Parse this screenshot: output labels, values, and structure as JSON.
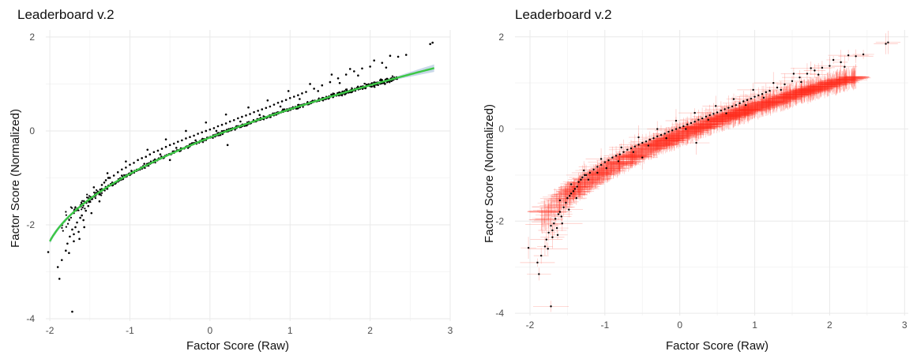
{
  "chart_data": [
    {
      "type": "scatter",
      "title": "Leaderboard v.2",
      "xlabel": "Factor Score (Raw)",
      "ylabel": "Factor Score (Normalized)",
      "xlim": [
        -2.05,
        3.0
      ],
      "ylim": [
        -4.05,
        2.15
      ],
      "xticks": [
        -2,
        -1,
        0,
        1,
        2,
        3
      ],
      "yticks": [
        -4,
        -2,
        0,
        2
      ],
      "grid": true,
      "colors": {
        "points": "#000000",
        "fit_line": "#3cc845",
        "fit_band": "#9ab8d6"
      },
      "series": [
        {
          "points": [
            [
              -2.02,
              -2.58
            ],
            [
              -1.88,
              -3.15
            ],
            [
              -1.72,
              -3.85
            ],
            [
              -1.85,
              -2.75
            ],
            [
              -1.8,
              -2.55
            ],
            [
              -1.78,
              -2.4
            ],
            [
              -1.75,
              -2.25
            ],
            [
              -1.72,
              -2.1
            ],
            [
              -1.7,
              -2.2
            ],
            [
              -1.68,
              -2.05
            ],
            [
              -1.66,
              -1.95
            ],
            [
              -1.64,
              -2.15
            ],
            [
              -1.62,
              -1.85
            ],
            [
              -1.6,
              -1.8
            ],
            [
              -1.58,
              -1.9
            ],
            [
              -1.55,
              -1.7
            ],
            [
              -1.52,
              -1.6
            ],
            [
              -1.5,
              -1.5
            ],
            [
              -1.47,
              -1.45
            ],
            [
              -1.45,
              -1.4
            ],
            [
              -1.42,
              -1.35
            ],
            [
              -1.4,
              -1.3
            ],
            [
              -1.37,
              -1.25
            ],
            [
              -1.35,
              -1.15
            ],
            [
              -1.32,
              -1.1
            ],
            [
              -1.3,
              -1.05
            ],
            [
              -1.27,
              -1.0
            ],
            [
              -1.25,
              -1.0
            ],
            [
              -1.2,
              -0.95
            ],
            [
              -1.15,
              -0.88
            ],
            [
              -1.1,
              -0.82
            ],
            [
              -1.05,
              -0.78
            ],
            [
              -1.0,
              -0.72
            ],
            [
              -0.95,
              -0.68
            ],
            [
              -0.9,
              -0.62
            ],
            [
              -0.85,
              -0.58
            ],
            [
              -0.8,
              -0.55
            ],
            [
              -0.75,
              -0.5
            ],
            [
              -0.7,
              -0.45
            ],
            [
              -0.65,
              -0.42
            ],
            [
              -0.6,
              -0.38
            ],
            [
              -0.55,
              -0.34
            ],
            [
              -0.5,
              -0.3
            ],
            [
              -0.5,
              -0.62
            ],
            [
              -0.45,
              -0.27
            ],
            [
              -0.4,
              -0.23
            ],
            [
              -0.35,
              -0.2
            ],
            [
              -0.3,
              -0.16
            ],
            [
              -0.25,
              -0.13
            ],
            [
              -0.2,
              -0.1
            ],
            [
              -0.15,
              -0.06
            ],
            [
              -0.1,
              -0.03
            ],
            [
              -0.05,
              0.0
            ],
            [
              0.0,
              0.03
            ],
            [
              0.05,
              0.06
            ],
            [
              0.1,
              0.1
            ],
            [
              0.15,
              0.13
            ],
            [
              0.2,
              0.16
            ],
            [
              0.22,
              -0.3
            ],
            [
              0.25,
              0.2
            ],
            [
              0.3,
              0.23
            ],
            [
              0.35,
              0.27
            ],
            [
              0.4,
              0.3
            ],
            [
              0.45,
              0.33
            ],
            [
              0.5,
              0.36
            ],
            [
              0.55,
              0.4
            ],
            [
              0.6,
              0.43
            ],
            [
              0.65,
              0.46
            ],
            [
              0.7,
              0.49
            ],
            [
              0.75,
              0.52
            ],
            [
              0.8,
              0.56
            ],
            [
              0.85,
              0.6
            ],
            [
              0.9,
              0.63
            ],
            [
              0.95,
              0.66
            ],
            [
              1.0,
              0.7
            ],
            [
              1.05,
              0.73
            ],
            [
              1.1,
              0.76
            ],
            [
              1.15,
              0.8
            ],
            [
              1.2,
              0.83
            ],
            [
              1.3,
              0.9
            ],
            [
              1.4,
              0.97
            ],
            [
              1.5,
              1.04
            ],
            [
              1.6,
              1.12
            ],
            [
              1.7,
              1.2
            ],
            [
              1.8,
              1.27
            ],
            [
              1.9,
              1.33
            ],
            [
              2.0,
              1.37
            ],
            [
              2.15,
              1.45
            ],
            [
              2.25,
              1.6
            ],
            [
              2.35,
              1.58
            ],
            [
              2.45,
              1.62
            ],
            [
              2.75,
              1.85
            ],
            [
              2.78,
              1.88
            ],
            [
              -1.9,
              -2.9
            ],
            [
              -1.76,
              -2.6
            ],
            [
              -1.7,
              -2.35
            ],
            [
              -1.63,
              -2.3
            ],
            [
              -1.57,
              -2.05
            ],
            [
              -1.48,
              -1.75
            ],
            [
              -1.38,
              -1.5
            ],
            [
              -1.22,
              -1.1
            ],
            [
              -1.1,
              -0.95
            ],
            [
              -0.98,
              -0.85
            ],
            [
              -0.82,
              -0.7
            ],
            [
              -0.62,
              -0.5
            ],
            [
              -0.42,
              -0.36
            ],
            [
              -0.18,
              -0.2
            ],
            [
              0.08,
              0.0
            ],
            [
              0.38,
              0.2
            ],
            [
              0.62,
              0.34
            ],
            [
              0.88,
              0.52
            ],
            [
              1.12,
              0.68
            ],
            [
              1.35,
              0.85
            ],
            [
              1.62,
              1.02
            ],
            [
              1.85,
              1.18
            ],
            [
              2.2,
              1.35
            ],
            [
              -1.6,
              -1.55
            ],
            [
              -1.45,
              -1.2
            ],
            [
              -1.28,
              -0.9
            ],
            [
              -1.05,
              -0.65
            ],
            [
              -0.78,
              -0.4
            ],
            [
              -0.55,
              -0.18
            ],
            [
              -0.3,
              0.0
            ],
            [
              -0.05,
              0.18
            ],
            [
              0.2,
              0.35
            ],
            [
              0.48,
              0.5
            ],
            [
              0.72,
              0.65
            ],
            [
              0.98,
              0.85
            ],
            [
              1.25,
              1.0
            ],
            [
              1.52,
              1.2
            ],
            [
              1.75,
              1.32
            ],
            [
              2.05,
              1.5
            ]
          ]
        }
      ],
      "fit_line": {
        "x": [
          -2.0,
          2.8
        ],
        "label": ""
      }
    },
    {
      "type": "scatter",
      "title": "Leaderboard v.2",
      "xlabel": "Factor Score (Raw)",
      "ylabel": "Factor Score (Normalized)",
      "xlim": [
        -2.2,
        3.05
      ],
      "ylim": [
        -4.05,
        2.15
      ],
      "xticks": [
        -2,
        -1,
        0,
        1,
        2,
        3
      ],
      "yticks": [
        -4,
        -2,
        0,
        2
      ],
      "grid": true,
      "colors": {
        "points": "#000000",
        "error_bars": "#ff2a1a"
      },
      "error_bars": true
    }
  ]
}
